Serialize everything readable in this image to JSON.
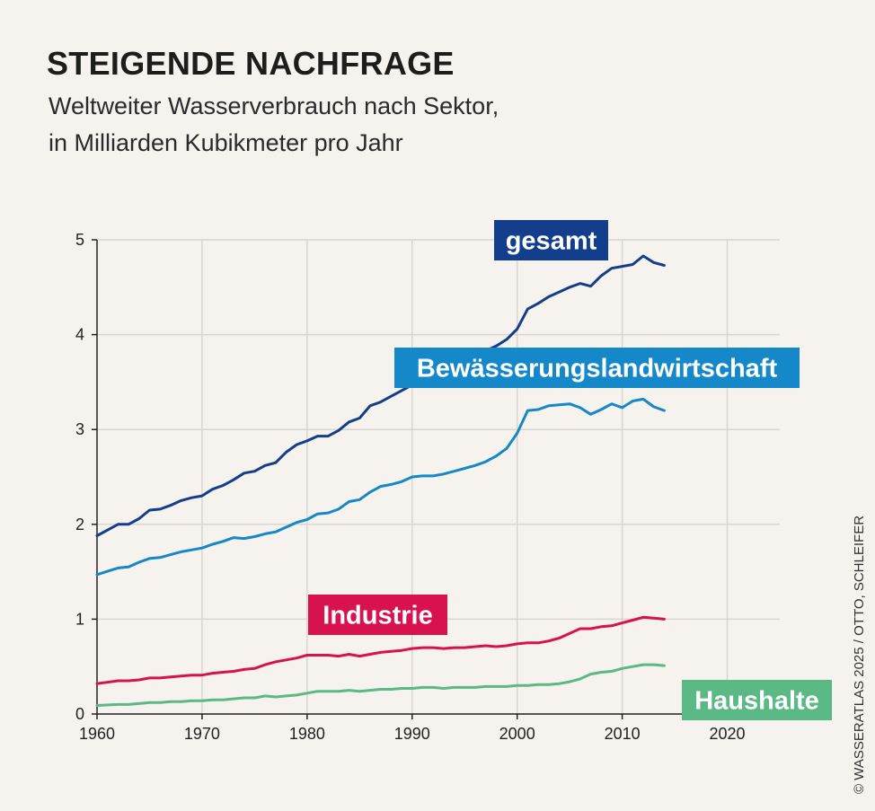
{
  "header": {
    "title": "STEIGENDE NACHFRAGE",
    "subtitle_line1": "Weltweiter Wasserverbrauch nach Sektor,",
    "subtitle_line2": "in Milliarden Kubikmeter pro Jahr"
  },
  "credit": "© WASSERATLAS 2025 / OTTO, SCHLEIFER",
  "chart_data": {
    "type": "line",
    "title": "STEIGENDE NACHFRAGE",
    "subtitle": "Weltweiter Wasserverbrauch nach Sektor, in Milliarden Kubikmeter pro Jahr",
    "xlabel": "",
    "ylabel": "",
    "xlim": [
      1960,
      2025
    ],
    "ylim": [
      0,
      5
    ],
    "x_ticks": [
      1960,
      1970,
      1980,
      1990,
      2000,
      2010,
      2020
    ],
    "y_ticks": [
      0,
      1,
      2,
      3,
      4,
      5
    ],
    "grid": true,
    "legend": "inline labels",
    "x": [
      1960,
      1962,
      1963,
      1964,
      1965,
      1966,
      1967,
      1968,
      1969,
      1970,
      1971,
      1972,
      1973,
      1974,
      1975,
      1976,
      1977,
      1978,
      1979,
      1980,
      1981,
      1982,
      1983,
      1984,
      1985,
      1986,
      1987,
      1988,
      1989,
      1990,
      1991,
      1992,
      1993,
      1994,
      1995,
      1996,
      1997,
      1998,
      1999,
      2000,
      2001,
      2002,
      2003,
      2004,
      2005,
      2006,
      2007,
      2008,
      2009,
      2010,
      2011,
      2012,
      2013,
      2014
    ],
    "series": [
      {
        "name": "gesamt",
        "color": "#123e8c",
        "values": [
          1.88,
          2.0,
          2.0,
          2.06,
          2.15,
          2.16,
          2.2,
          2.25,
          2.28,
          2.3,
          2.37,
          2.41,
          2.47,
          2.54,
          2.56,
          2.62,
          2.65,
          2.76,
          2.84,
          2.88,
          2.93,
          2.93,
          2.99,
          3.08,
          3.12,
          3.25,
          3.29,
          3.35,
          3.41,
          3.47,
          3.52,
          3.57,
          3.62,
          3.67,
          3.73,
          3.78,
          3.83,
          3.88,
          3.95,
          4.06,
          4.27,
          4.33,
          4.4,
          4.45,
          4.5,
          4.54,
          4.51,
          4.62,
          4.7,
          4.72,
          4.74,
          4.83,
          4.76,
          4.73
        ]
      },
      {
        "name": "Bewässerungslandwirtschaft",
        "color": "#1488c9",
        "values": [
          1.47,
          1.54,
          1.55,
          1.6,
          1.64,
          1.65,
          1.68,
          1.71,
          1.73,
          1.75,
          1.79,
          1.82,
          1.86,
          1.85,
          1.87,
          1.9,
          1.92,
          1.97,
          2.02,
          2.05,
          2.11,
          2.12,
          2.16,
          2.24,
          2.26,
          2.34,
          2.4,
          2.42,
          2.45,
          2.5,
          2.51,
          2.51,
          2.53,
          2.56,
          2.59,
          2.62,
          2.66,
          2.72,
          2.8,
          2.96,
          3.2,
          3.21,
          3.25,
          3.26,
          3.27,
          3.23,
          3.16,
          3.21,
          3.27,
          3.23,
          3.3,
          3.32,
          3.24,
          3.2
        ]
      },
      {
        "name": "Industrie",
        "color": "#d8114f",
        "values": [
          0.32,
          0.35,
          0.35,
          0.36,
          0.38,
          0.38,
          0.39,
          0.4,
          0.41,
          0.41,
          0.43,
          0.44,
          0.45,
          0.47,
          0.48,
          0.52,
          0.55,
          0.57,
          0.59,
          0.62,
          0.62,
          0.62,
          0.61,
          0.63,
          0.61,
          0.63,
          0.65,
          0.66,
          0.67,
          0.69,
          0.7,
          0.7,
          0.69,
          0.7,
          0.7,
          0.71,
          0.72,
          0.71,
          0.72,
          0.74,
          0.75,
          0.75,
          0.77,
          0.8,
          0.85,
          0.9,
          0.9,
          0.92,
          0.93,
          0.96,
          0.99,
          1.02,
          1.01,
          1.0
        ]
      },
      {
        "name": "Haushalte",
        "color": "#5bb985",
        "values": [
          0.09,
          0.1,
          0.1,
          0.11,
          0.12,
          0.12,
          0.13,
          0.13,
          0.14,
          0.14,
          0.15,
          0.15,
          0.16,
          0.17,
          0.17,
          0.19,
          0.18,
          0.19,
          0.2,
          0.22,
          0.24,
          0.24,
          0.24,
          0.25,
          0.24,
          0.25,
          0.26,
          0.26,
          0.27,
          0.27,
          0.28,
          0.28,
          0.27,
          0.28,
          0.28,
          0.28,
          0.29,
          0.29,
          0.29,
          0.3,
          0.3,
          0.31,
          0.31,
          0.32,
          0.34,
          0.37,
          0.42,
          0.44,
          0.45,
          0.48,
          0.5,
          0.52,
          0.52,
          0.51
        ]
      }
    ]
  }
}
